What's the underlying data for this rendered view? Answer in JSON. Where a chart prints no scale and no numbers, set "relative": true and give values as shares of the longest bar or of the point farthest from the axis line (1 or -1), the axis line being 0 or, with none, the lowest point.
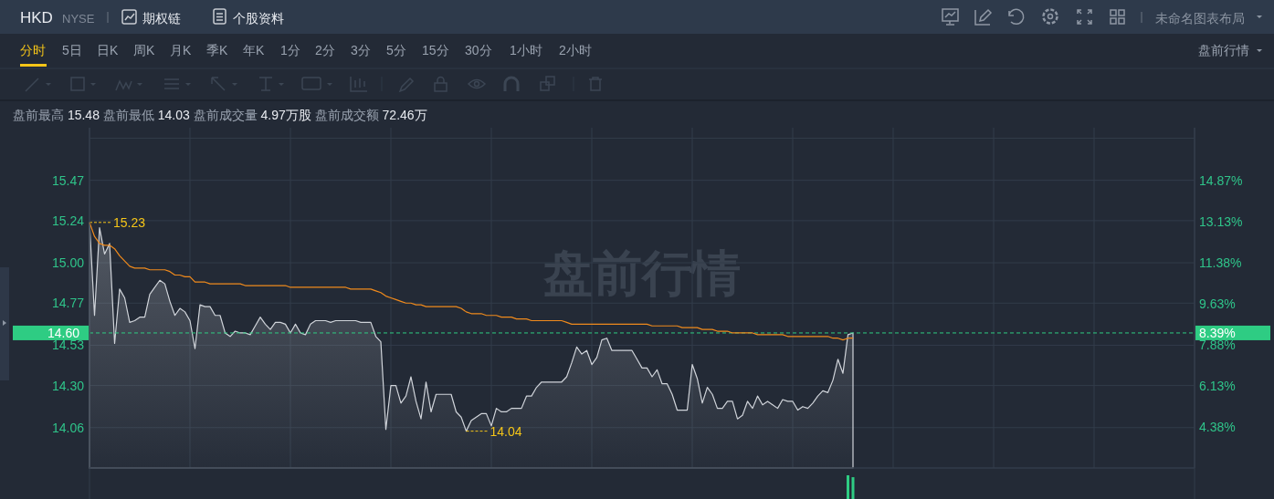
{
  "chart_data": [
    {
      "type": "area",
      "title": "HKD",
      "subtitle": "NYSE",
      "annotations": [
        "期权链",
        "个股资料",
        "未命名图表布局",
        "分时",
        "5日",
        "日K",
        "周K",
        "月K",
        "季K",
        "年K",
        "1分",
        "2分",
        "3分",
        "5分",
        "15分",
        "30分",
        "1小时",
        "2小时",
        "盘前行情",
        "盘前最高 15.48 盘前最低 14.03 盘前成交量 4.97万股 盘前成交额 72.46万",
        "盘前行情",
        "8.39%",
        "15.23",
        "14.04"
      ],
      "categories": [
        null,
        null,
        null,
        null,
        null,
        null,
        null,
        null,
        null,
        null,
        null,
        null,
        null,
        null,
        null,
        null,
        null,
        null,
        null,
        null,
        null,
        null,
        null,
        null,
        null,
        null,
        null,
        null,
        null,
        null,
        null,
        null,
        null,
        null,
        null,
        null,
        null,
        null,
        null,
        null,
        null,
        null,
        null,
        null,
        null,
        null,
        null,
        null,
        null,
        null,
        null,
        null,
        null,
        null,
        null,
        null,
        null,
        null,
        null,
        null,
        null,
        null,
        null,
        null,
        null,
        null,
        null,
        null,
        null,
        null,
        null,
        null,
        null,
        null,
        null,
        null,
        null,
        null,
        null,
        null,
        null,
        null,
        null,
        null,
        null,
        null,
        null,
        null,
        null,
        null,
        null,
        null,
        null,
        null,
        null,
        null,
        null,
        null,
        null,
        null,
        null,
        null,
        null,
        null,
        null,
        null,
        null,
        null,
        null,
        null,
        null,
        null,
        null,
        null,
        null,
        null,
        null,
        null,
        null,
        null,
        null,
        null,
        null,
        null,
        null,
        null,
        null,
        null,
        null,
        null,
        null,
        null,
        null,
        null,
        null,
        null,
        null,
        null,
        null,
        null,
        null,
        null,
        null,
        null,
        null,
        null,
        null,
        null,
        null,
        null,
        null,
        null,
        null
      ],
      "color": "#d0d4da",
      "values": [
        15.23,
        14.7,
        15.2,
        15.05,
        15.11,
        14.54,
        14.85,
        14.8,
        14.66,
        14.67,
        14.69,
        14.69,
        14.82,
        14.86,
        14.9,
        14.88,
        14.78,
        14.7,
        14.74,
        14.72,
        14.67,
        14.51,
        14.76,
        14.75,
        14.75,
        14.7,
        14.7,
        14.6,
        14.58,
        14.61,
        14.6,
        14.6,
        14.59,
        14.64,
        14.69,
        14.65,
        14.62,
        14.66,
        14.66,
        14.65,
        14.6,
        14.65,
        14.6,
        14.59,
        14.65,
        14.67,
        14.67,
        14.67,
        14.66,
        14.67,
        14.67,
        14.67,
        14.67,
        14.67,
        14.66,
        14.66,
        14.66,
        14.58,
        14.55,
        14.05,
        14.3,
        14.3,
        14.2,
        14.24,
        14.35,
        14.21,
        14.11,
        14.32,
        14.15,
        14.25,
        14.25,
        14.25,
        14.25,
        14.15,
        14.12,
        14.04,
        14.1,
        14.12,
        14.14,
        14.14,
        14.07,
        14.17,
        14.15,
        14.15,
        14.17,
        14.17,
        14.17,
        14.24,
        14.24,
        14.29,
        14.32,
        14.32,
        14.32,
        14.32,
        14.32,
        14.35,
        14.43,
        14.52,
        14.48,
        14.5,
        14.42,
        14.46,
        14.56,
        14.57,
        14.5,
        14.5,
        14.5,
        14.5,
        14.5,
        14.45,
        14.4,
        14.4,
        14.35,
        14.39,
        14.31,
        14.31,
        14.25,
        14.16,
        14.16,
        14.16,
        14.42,
        14.34,
        14.2,
        14.29,
        14.25,
        14.17,
        14.17,
        14.21,
        14.21,
        14.11,
        14.13,
        14.21,
        14.17,
        14.24,
        14.19,
        14.21,
        14.19,
        14.17,
        14.22,
        14.21,
        14.21,
        14.16,
        14.18,
        14.17,
        14.2,
        14.24,
        14.27,
        14.26,
        14.33,
        14.45,
        14.37,
        14.59,
        14.6
      ],
      "ylim": [
        13.83,
        15.77
      ],
      "yticks": [
        {
          "value": 15.71,
          "label": null
        },
        15.47,
        15.24,
        {
          "value": 15,
          "label": "15.00"
        },
        14.77,
        14.53,
        {
          "value": 14.3,
          "label": "14.30"
        },
        14.06
      ],
      "y2lim": [
        2.63,
        17.12
      ],
      "y2ticks": [
        {
          "value": 14.87,
          "label": "14.87%"
        },
        {
          "value": 13.13,
          "label": "13.13%"
        },
        {
          "value": 11.38,
          "label": "11.38%"
        },
        {
          "value": 9.63,
          "label": "9.63%"
        },
        {
          "value": 7.88,
          "label": "7.88%"
        },
        {
          "value": 6.13,
          "label": "6.13%"
        },
        {
          "value": 4.38,
          "label": "4.38%"
        }
      ],
      "ref_lines": [
        {
          "axis": "y",
          "value": 14.6,
          "label": "14.60",
          "color": "#2ecc83",
          "line_style": "dashed"
        }
      ],
      "grid": true
    },
    {
      "type": "line",
      "color": "#f08a1c",
      "categories": [
        null,
        null,
        null,
        null,
        null,
        null,
        null,
        null,
        null,
        null,
        null,
        null,
        null,
        null,
        null,
        null,
        null,
        null,
        null,
        null,
        null,
        null,
        null,
        null,
        null,
        null,
        null,
        null,
        null,
        null,
        null,
        null,
        null,
        null,
        null,
        null,
        null,
        null,
        null,
        null,
        null,
        null,
        null,
        null,
        null,
        null,
        null,
        null,
        null,
        null,
        null,
        null,
        null,
        null,
        null,
        null,
        null,
        null,
        null,
        null,
        null,
        null,
        null,
        null,
        null,
        null,
        null,
        null,
        null,
        null,
        null,
        null,
        null,
        null,
        null,
        null,
        null,
        null,
        null,
        null,
        null,
        null,
        null,
        null,
        null,
        null,
        null,
        null,
        null,
        null,
        null,
        null,
        null,
        null,
        null,
        null,
        null,
        null,
        null,
        null,
        null,
        null,
        null,
        null,
        null,
        null,
        null,
        null,
        null,
        null,
        null,
        null,
        null,
        null,
        null,
        null,
        null,
        null,
        null,
        null,
        null,
        null,
        null,
        null,
        null,
        null,
        null,
        null,
        null,
        null,
        null,
        null,
        null,
        null,
        null,
        null,
        null,
        null,
        null,
        null,
        null,
        null,
        null,
        null,
        null,
        null,
        null,
        null,
        null,
        null,
        null,
        null,
        null
      ],
      "values": [
        15.23,
        15.15,
        15.11,
        15.1,
        15.1,
        15.08,
        15.04,
        15.01,
        14.98,
        14.97,
        14.97,
        14.97,
        14.96,
        14.96,
        14.96,
        14.96,
        14.95,
        14.93,
        14.93,
        14.92,
        14.92,
        14.89,
        14.89,
        14.89,
        14.88,
        14.88,
        14.88,
        14.88,
        14.88,
        14.88,
        14.88,
        14.87,
        14.87,
        14.87,
        14.87,
        14.87,
        14.87,
        14.87,
        14.87,
        14.87,
        14.86,
        14.86,
        14.86,
        14.86,
        14.86,
        14.86,
        14.86,
        14.86,
        14.86,
        14.86,
        14.86,
        14.86,
        14.85,
        14.85,
        14.85,
        14.85,
        14.85,
        14.84,
        14.83,
        14.81,
        14.8,
        14.79,
        14.78,
        14.77,
        14.77,
        14.76,
        14.76,
        14.75,
        14.75,
        14.75,
        14.75,
        14.75,
        14.75,
        14.75,
        14.74,
        14.72,
        14.71,
        14.71,
        14.71,
        14.7,
        14.7,
        14.7,
        14.69,
        14.69,
        14.69,
        14.68,
        14.68,
        14.68,
        14.67,
        14.67,
        14.67,
        14.67,
        14.67,
        14.67,
        14.67,
        14.66,
        14.65,
        14.65,
        14.65,
        14.65,
        14.65,
        14.65,
        14.65,
        14.65,
        14.65,
        14.65,
        14.65,
        14.65,
        14.65,
        14.65,
        14.65,
        14.65,
        14.64,
        14.64,
        14.64,
        14.64,
        14.64,
        14.64,
        14.63,
        14.63,
        14.63,
        14.63,
        14.62,
        14.62,
        14.62,
        14.61,
        14.61,
        14.61,
        14.6,
        14.6,
        14.6,
        14.6,
        14.6,
        14.59,
        14.59,
        14.59,
        14.59,
        14.59,
        14.59,
        14.58,
        14.58,
        14.58,
        14.58,
        14.58,
        14.58,
        14.58,
        14.58,
        14.58,
        14.57,
        14.57,
        14.56,
        14.57,
        14.57
      ],
      "ylim": [
        13.83,
        15.77
      ]
    },
    {
      "type": "bar",
      "relative": true,
      "color": "#2ecc83",
      "categories": [
        null,
        null
      ],
      "values": [
        1,
        0.92
      ]
    }
  ]
}
